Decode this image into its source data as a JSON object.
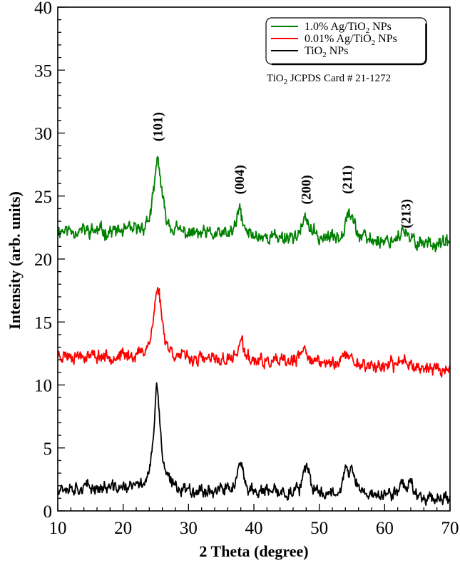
{
  "chart_data": {
    "type": "line",
    "title": "",
    "xlabel": "2 Theta (degree)",
    "ylabel": "Intensity (arb. units)",
    "xlim": [
      10,
      70
    ],
    "ylim": [
      0,
      40
    ],
    "xticks": [
      10,
      20,
      30,
      40,
      50,
      60,
      70
    ],
    "yticks": [
      0,
      5,
      10,
      15,
      20,
      25,
      30,
      35,
      40
    ],
    "x_minor_step": 2,
    "y_minor_step": 1,
    "grid": false,
    "legend_position": "upper right",
    "annotation": "TiO2 JCPDS Card # 21-1272",
    "peak_labels": [
      {
        "label": "(101)",
        "x": 25.3,
        "y": 30.5
      },
      {
        "label": "(004)",
        "x": 37.8,
        "y": 26.3
      },
      {
        "label": "(200)",
        "x": 48.0,
        "y": 25.5
      },
      {
        "label": "(211)",
        "x": 54.3,
        "y": 26.3
      },
      {
        "label": "(213)",
        "x": 63.3,
        "y": 23.6
      }
    ],
    "series": [
      {
        "name": "1.0% Ag/TiO2 NPs",
        "color": "#008000",
        "baseline_start": 22.3,
        "baseline_end": 21.2,
        "noise": 0.55,
        "seed": 11,
        "peaks": [
          {
            "center": 25.3,
            "height": 5.8,
            "width": 0.7
          },
          {
            "center": 37.8,
            "height": 2.1,
            "width": 0.5
          },
          {
            "center": 48.0,
            "height": 1.5,
            "width": 0.7
          },
          {
            "center": 54.4,
            "height": 2.2,
            "width": 0.55
          },
          {
            "center": 55.2,
            "height": 0.9,
            "width": 0.5
          },
          {
            "center": 62.7,
            "height": 0.8,
            "width": 0.8
          }
        ]
      },
      {
        "name": "0.01% Ag/TiO2 NPs",
        "color": "#ff0000",
        "baseline_start": 12.4,
        "baseline_end": 11.2,
        "noise": 0.5,
        "seed": 23,
        "peaks": [
          {
            "center": 25.3,
            "height": 5.6,
            "width": 0.75
          },
          {
            "center": 38.0,
            "height": 1.6,
            "width": 0.55
          },
          {
            "center": 47.8,
            "height": 1.2,
            "width": 0.7
          },
          {
            "center": 54.2,
            "height": 0.8,
            "width": 1.1
          },
          {
            "center": 63.0,
            "height": 0.7,
            "width": 1.0
          }
        ]
      },
      {
        "name": "TiO2 NPs",
        "color": "#000000",
        "baseline_start": 1.9,
        "baseline_end": 1.0,
        "noise": 0.5,
        "seed": 37,
        "peaks": [
          {
            "center": 25.2,
            "height": 8.0,
            "width": 0.6
          },
          {
            "center": 37.9,
            "height": 2.0,
            "width": 0.6
          },
          {
            "center": 48.0,
            "height": 2.0,
            "width": 0.6
          },
          {
            "center": 54.0,
            "height": 1.6,
            "width": 0.55
          },
          {
            "center": 55.1,
            "height": 1.7,
            "width": 0.55
          },
          {
            "center": 62.7,
            "height": 1.1,
            "width": 0.6
          },
          {
            "center": 64.0,
            "height": 0.9,
            "width": 0.5
          }
        ]
      }
    ]
  },
  "legend": {
    "items": [
      {
        "label": "1.0% Ag/TiO",
        "sub": "2",
        "suffix": " NPs",
        "color": "#008000"
      },
      {
        "label": "0.01% Ag/TiO",
        "sub": "2",
        "suffix": " NPs",
        "color": "#ff0000"
      },
      {
        "label": "TiO",
        "sub": "2",
        "suffix": " NPs",
        "color": "#000000"
      }
    ]
  },
  "annotation": {
    "prefix": "TiO",
    "sub": "2",
    "suffix": " JCPDS Card # 21-1272"
  }
}
